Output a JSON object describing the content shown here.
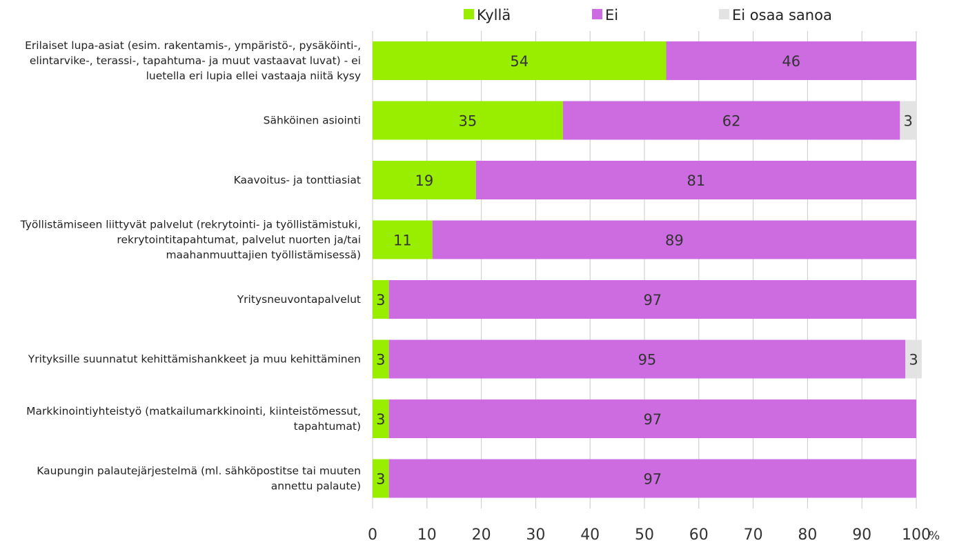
{
  "chart_data": {
    "type": "bar",
    "orientation": "horizontal",
    "stacked": true,
    "title": "",
    "xlabel": "",
    "ylabel": "",
    "x_unit": "%",
    "xlim": [
      0,
      100
    ],
    "x_ticks": [
      0,
      10,
      20,
      30,
      40,
      50,
      60,
      70,
      80,
      90,
      100
    ],
    "grid": true,
    "legend_position": "top",
    "categories": [
      [
        "Erilaiset lupa-asiat (esim. rakentamis-, ympäristö-, pysäköinti-,",
        "elintarvike-, terassi-, tapahtuma- ja muut vastaavat luvat) - ei",
        "luetella eri lupia ellei vastaaja niitä kysy"
      ],
      [
        "Sähköinen asiointi"
      ],
      [
        "Kaavoitus- ja tonttiasiat"
      ],
      [
        "Työllistämiseen liittyvät palvelut (rekrytointi- ja työllistämistuki,",
        "rekrytointitapahtumat, palvelut nuorten ja/tai",
        "maahanmuuttajien työllistämisessä)"
      ],
      [
        "Yritysneuvontapalvelut"
      ],
      [
        "Yrityksille suunnatut kehittämishankkeet ja muu kehittäminen"
      ],
      [
        "Markkinointiyhteistyö (matkailumarkkinointi, kiinteistömessut,",
        "tapahtumat)"
      ],
      [
        "Kaupungin palautejärjestelmä (ml. sähköpostitse tai muuten",
        "annettu palaute)"
      ]
    ],
    "series": [
      {
        "name": "Kyllä",
        "color": "#99ee00",
        "values": [
          54,
          35,
          19,
          11,
          3,
          3,
          3,
          3
        ]
      },
      {
        "name": "Ei",
        "color": "#cc6ce0",
        "values": [
          46,
          62,
          81,
          89,
          97,
          95,
          97,
          97
        ]
      },
      {
        "name": "Ei osaa sanoa",
        "color": "#e3e3e3",
        "values": [
          0,
          3,
          0,
          0,
          0,
          3,
          0,
          0
        ]
      }
    ]
  }
}
